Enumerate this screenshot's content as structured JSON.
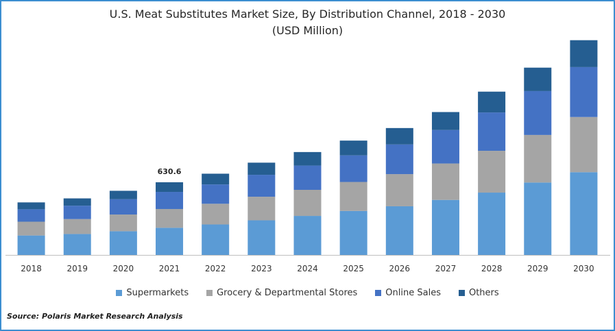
{
  "chart_data": {
    "type": "bar",
    "stacked": true,
    "title": "U.S. Meat Substitutes Market Size, By Distribution Channel, 2018 - 2030",
    "subtitle": "(USD Million)",
    "categories": [
      "2018",
      "2019",
      "2020",
      "2021",
      "2022",
      "2023",
      "2024",
      "2025",
      "2026",
      "2027",
      "2028",
      "2029",
      "2030"
    ],
    "series": [
      {
        "name": "Supermarkets",
        "color": "#5b9bd5",
        "values": [
          141,
          152,
          172,
          197,
          221,
          251,
          283,
          319,
          353,
          399,
          452,
          525,
          600
        ]
      },
      {
        "name": "Grocery & Departmental Stores",
        "color": "#a5a5a5",
        "values": [
          100,
          108,
          121,
          136,
          150,
          171,
          189,
          210,
          233,
          264,
          303,
          345,
          400
        ]
      },
      {
        "name": "Online Sales",
        "color": "#4472c4",
        "values": [
          90,
          97,
          111,
          124,
          140,
          159,
          176,
          193,
          215,
          243,
          278,
          318,
          362
        ]
      },
      {
        "name": "Others",
        "color": "#255e91",
        "values": [
          50,
          53,
          61,
          70,
          78,
          88,
          98,
          107,
          119,
          130,
          151,
          170,
          195
        ]
      }
    ],
    "annotations": [
      {
        "category": "2021",
        "label": "630.6"
      }
    ],
    "ylim": [
      0,
      1600
    ],
    "xlabel": "",
    "ylabel": "",
    "grid": false,
    "legend": "bottom"
  },
  "source": "Source: Polaris  Market Research Analysis"
}
